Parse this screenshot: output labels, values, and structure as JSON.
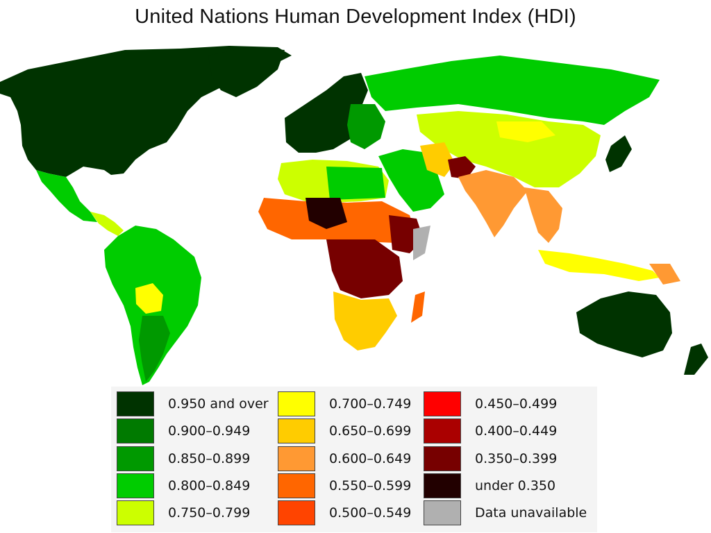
{
  "title": "United Nations Human Development Index (HDI)",
  "legend": [
    {
      "label": "0.950 and over",
      "color": "#003300"
    },
    {
      "label": "0.900–0.949",
      "color": "#007a00"
    },
    {
      "label": "0.850–0.899",
      "color": "#009900"
    },
    {
      "label": "0.800–0.849",
      "color": "#00cc00"
    },
    {
      "label": "0.750–0.799",
      "color": "#ccff00"
    },
    {
      "label": "0.700–0.749",
      "color": "#ffff00"
    },
    {
      "label": "0.650–0.699",
      "color": "#ffcc00"
    },
    {
      "label": "0.600–0.649",
      "color": "#ff9933"
    },
    {
      "label": "0.550–0.599",
      "color": "#ff6600"
    },
    {
      "label": "0.500–0.549",
      "color": "#ff4400"
    },
    {
      "label": "0.450–0.499",
      "color": "#ff0000"
    },
    {
      "label": "0.400–0.449",
      "color": "#aa0000"
    },
    {
      "label": "0.350–0.399",
      "color": "#770000"
    },
    {
      "label": "under 0.350",
      "color": "#220000"
    },
    {
      "label": "Data unavailable",
      "color": "#b0b0b0"
    }
  ]
}
